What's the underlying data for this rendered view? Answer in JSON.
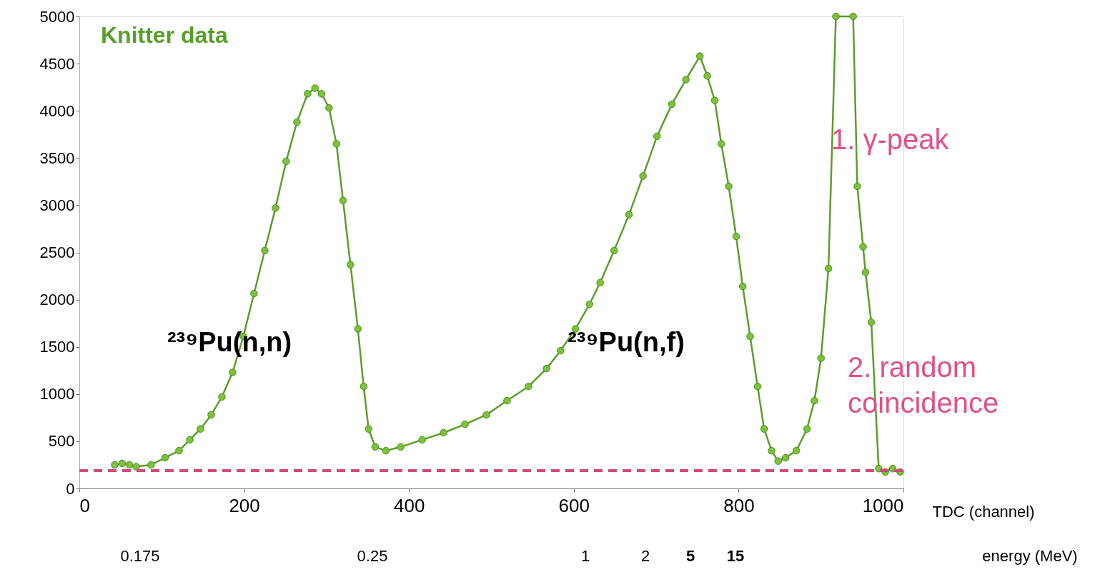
{
  "chart_data": {
    "type": "line",
    "xlabel": "TDC (channel)",
    "xlim": [
      0,
      1000
    ],
    "xticks": [
      0,
      200,
      400,
      600,
      800,
      1000
    ],
    "ylim": [
      0,
      5000
    ],
    "yticks": [
      0,
      500,
      1000,
      1500,
      2000,
      2500,
      3000,
      3500,
      4000,
      4500,
      5000
    ],
    "grid": false,
    "marker": "circle",
    "line_style": "solid",
    "series": [
      {
        "name": "Knitter data",
        "color": "#5a9e2a",
        "x": [
          43,
          52,
          61,
          69,
          87,
          104,
          121,
          134,
          147,
          160,
          173,
          186,
          199,
          212,
          225,
          238,
          251,
          264,
          277,
          286,
          294,
          303,
          312,
          320,
          329,
          338,
          345,
          351,
          359,
          372,
          390,
          416,
          442,
          468,
          494,
          519,
          545,
          567,
          584,
          602,
          619,
          632,
          649,
          667,
          684,
          701,
          719,
          736,
          753,
          762,
          771,
          779,
          788,
          797,
          805,
          814,
          823,
          831,
          840,
          848,
          857,
          870,
          883,
          892,
          900,
          909,
          918,
          939,
          944,
          951,
          954,
          961,
          970,
          978,
          987,
          996
        ],
        "values": [
          250,
          265,
          250,
          230,
          250,
          325,
          400,
          515,
          630,
          780,
          970,
          1230,
          1610,
          2065,
          2520,
          2970,
          3465,
          3880,
          4180,
          4240,
          4180,
          4030,
          3650,
          3050,
          2370,
          1690,
          1080,
          630,
          440,
          400,
          440,
          515,
          590,
          680,
          780,
          930,
          1080,
          1270,
          1460,
          1690,
          1950,
          2180,
          2520,
          2900,
          3310,
          3730,
          4070,
          4330,
          4580,
          4370,
          4110,
          3650,
          3200,
          2670,
          2140,
          1610,
          1080,
          630,
          400,
          290,
          325,
          400,
          630,
          930,
          1380,
          2330,
          5000,
          5000,
          3200,
          2560,
          2290,
          1760,
          210,
          175,
          210,
          175
        ]
      }
    ],
    "ref_lines": [
      {
        "axis": "y",
        "value": 190,
        "color": "#d04a7a",
        "line_style": "dashed"
      }
    ],
    "annotations": [
      "²³⁹Pu(n,n)",
      "²³⁹Pu(n,f)",
      "1. γ-peak",
      "2. random coincidence",
      "0.175",
      "0.25",
      "1",
      "2",
      "5",
      "15",
      "energy (MeV)"
    ]
  }
}
